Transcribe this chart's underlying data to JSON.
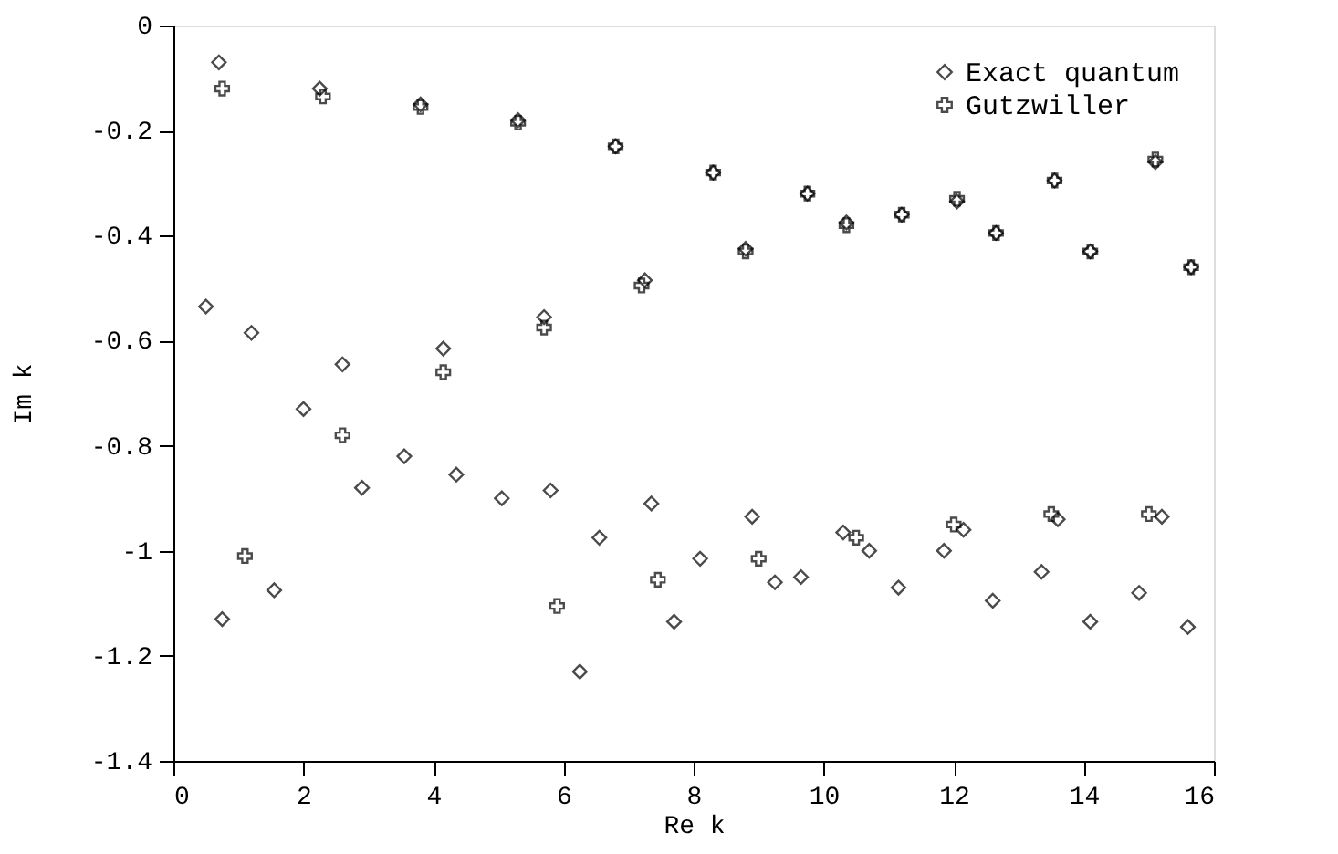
{
  "chart_data": {
    "type": "scatter",
    "xlabel": "Re k",
    "ylabel": "Im k",
    "xlim": [
      0,
      16
    ],
    "ylim": [
      -1.4,
      0
    ],
    "xticks": [
      0,
      2,
      4,
      6,
      8,
      10,
      12,
      14,
      16
    ],
    "yticks": [
      0,
      -0.2,
      -0.4,
      -0.6,
      -0.8,
      -1,
      -1.2,
      -1.4
    ],
    "grid": false,
    "legend": "top right",
    "series": [
      {
        "name": "Exact quantum",
        "color": "#000000",
        "marker": "diamond",
        "x": [
          0.7,
          2.25,
          3.8,
          5.3,
          6.8,
          8.3,
          9.75,
          10.35,
          11.2,
          12.05,
          12.65,
          13.55,
          15.1,
          15.65,
          14.1,
          8.8,
          7.25,
          5.7,
          4.15,
          2.6,
          1.2,
          0.5,
          2.0,
          3.55,
          4.35,
          2.9,
          5.05,
          5.8,
          7.35,
          6.55,
          8.1,
          8.9,
          9.25,
          9.65,
          10.3,
          10.7,
          11.15,
          11.85,
          12.15,
          12.6,
          13.35,
          13.6,
          14.1,
          14.85,
          15.2,
          15.6,
          0.75,
          1.55,
          6.25,
          7.7
        ],
        "values": [
          -0.07,
          -0.12,
          -0.15,
          -0.18,
          -0.23,
          -0.28,
          -0.32,
          -0.375,
          -0.36,
          -0.335,
          -0.395,
          -0.295,
          -0.26,
          -0.46,
          -0.43,
          -0.425,
          -0.485,
          -0.555,
          -0.615,
          -0.645,
          -0.585,
          -0.535,
          -0.73,
          -0.82,
          -0.855,
          -0.88,
          -0.9,
          -0.885,
          -0.91,
          -0.975,
          -1.015,
          -0.935,
          -1.06,
          -1.05,
          -0.965,
          -1.0,
          -1.07,
          -1.0,
          -0.96,
          -1.095,
          -1.04,
          -0.94,
          -1.135,
          -1.08,
          -0.935,
          -1.145,
          -1.13,
          -1.075,
          -1.23,
          -1.135
        ]
      },
      {
        "name": "Gutzwiller",
        "color": "#000000",
        "marker": "cross",
        "x": [
          0.75,
          2.3,
          3.8,
          5.3,
          6.8,
          8.3,
          9.75,
          10.35,
          11.2,
          12.05,
          12.65,
          13.55,
          15.1,
          15.65,
          14.1,
          8.8,
          7.2,
          5.7,
          4.15,
          2.6,
          1.1,
          5.9,
          7.45,
          9.0,
          10.5,
          12.0,
          13.5,
          15.0
        ],
        "values": [
          -0.12,
          -0.135,
          -0.155,
          -0.185,
          -0.23,
          -0.28,
          -0.32,
          -0.38,
          -0.36,
          -0.33,
          -0.395,
          -0.295,
          -0.255,
          -0.46,
          -0.43,
          -0.43,
          -0.495,
          -0.575,
          -0.66,
          -0.78,
          -1.01,
          -1.105,
          -1.055,
          -1.015,
          -0.975,
          -0.95,
          -0.93,
          -0.93
        ]
      }
    ]
  }
}
